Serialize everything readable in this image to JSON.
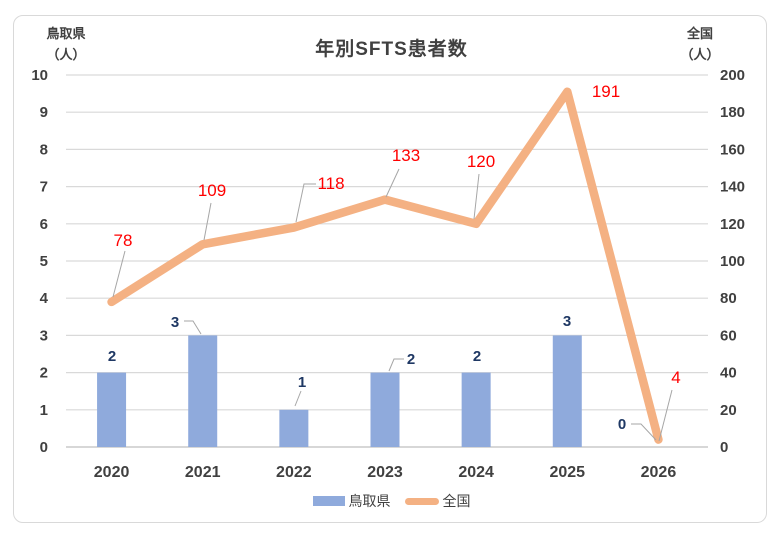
{
  "chart": {
    "title": "年別SFTS患者数",
    "left_axis": {
      "name": "鳥取県",
      "unit": "（人）"
    },
    "right_axis": {
      "name": "全国",
      "unit": "（人）"
    },
    "legend": {
      "bar_label": "鳥取県",
      "line_label": "全国"
    }
  },
  "chart_data": {
    "type": "combo-bar-line",
    "title": "年別SFTS患者数",
    "categories": [
      "2020",
      "2021",
      "2022",
      "2023",
      "2024",
      "2025",
      "2026"
    ],
    "series": [
      {
        "name": "鳥取県",
        "type": "bar",
        "axis": "left",
        "values": [
          2,
          3,
          1,
          2,
          2,
          3,
          0
        ],
        "color": "#8FAADC",
        "label_color": "#1F3864"
      },
      {
        "name": "全国",
        "type": "line",
        "axis": "right",
        "values": [
          78,
          109,
          118,
          133,
          120,
          191,
          4
        ],
        "color": "#F4B183",
        "label_color": "#FF0000"
      }
    ],
    "left_axis": {
      "label": "鳥取県（人）",
      "min": 0,
      "max": 10,
      "tick_step": 1
    },
    "right_axis": {
      "label": "全国（人）",
      "min": 0,
      "max": 200,
      "tick_step": 20
    },
    "grid": true,
    "legend_position": "bottom"
  },
  "colors": {
    "bar": "#8FAADC",
    "line": "#F4B183",
    "line_label": "#FF0000",
    "bar_label": "#1F3864",
    "axis_text": "#404040",
    "gridline": "#D9D9D9",
    "leader_line": "#A6A6A6",
    "border": "#D9D9D9"
  }
}
